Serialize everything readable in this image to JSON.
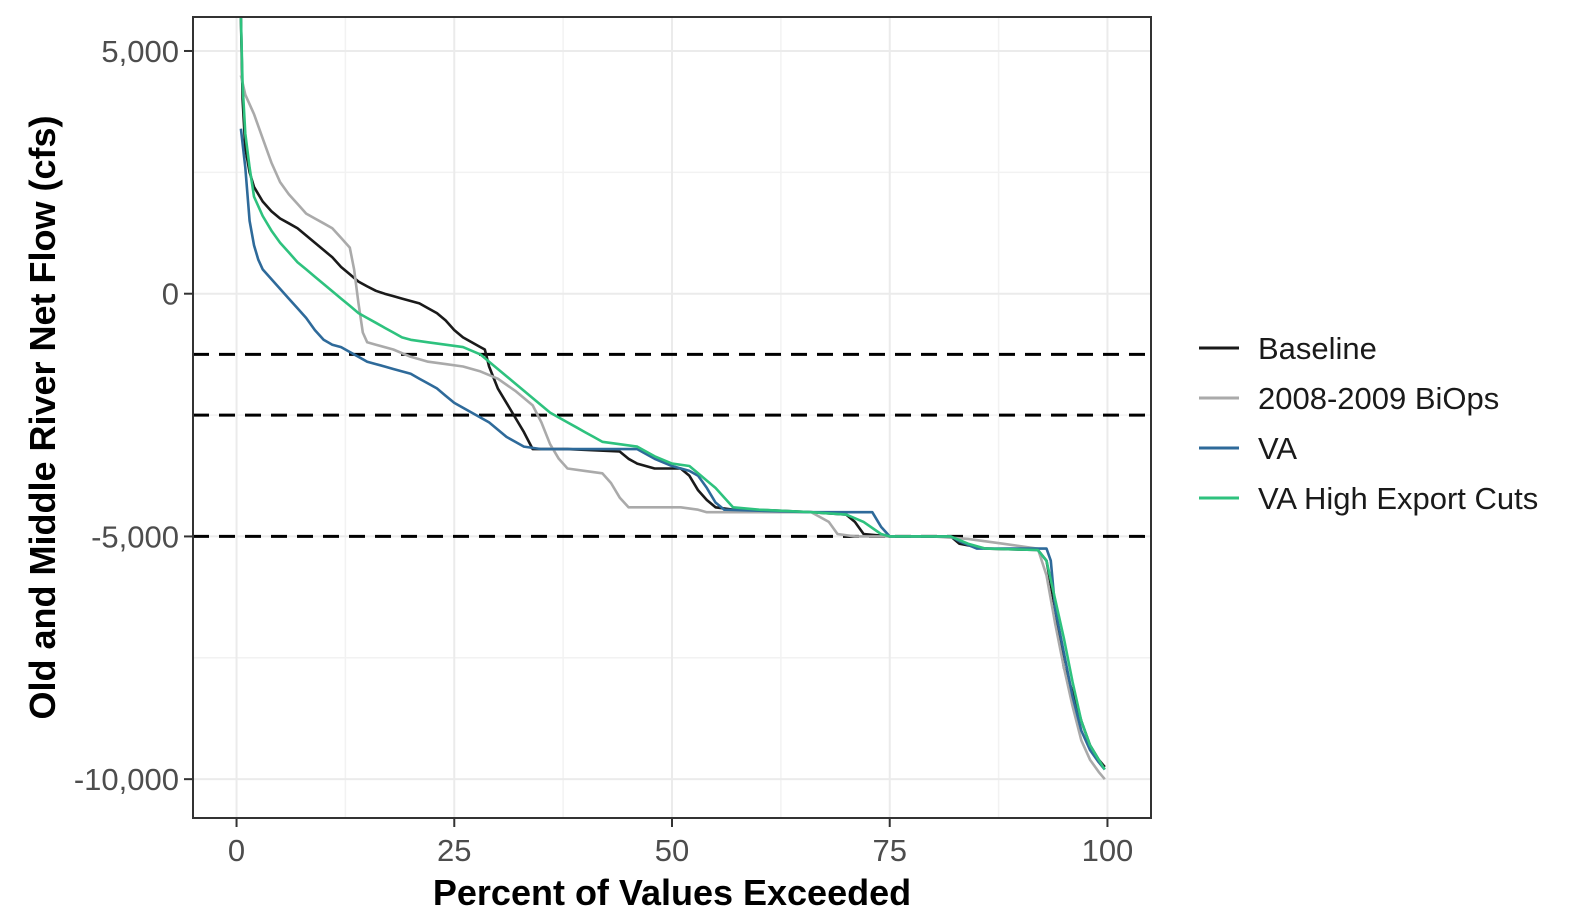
{
  "chart_data": {
    "type": "line",
    "title": "",
    "xlabel": "Percent of Values Exceeded",
    "ylabel": "Old and Middle River Net Flow (cfs)",
    "xlim": [
      -5,
      105
    ],
    "ylim": [
      -10800,
      5700
    ],
    "x_ticks": [
      0,
      25,
      50,
      75,
      100
    ],
    "x_tick_labels": [
      "0",
      "25",
      "50",
      "75",
      "100"
    ],
    "y_ticks": [
      5000,
      0,
      -5000,
      -10000
    ],
    "y_tick_labels": [
      "5,000",
      "0",
      "-5,000",
      "-10,000"
    ],
    "grid": true,
    "legend_position": "right",
    "reference_lines": [
      {
        "y": -1250,
        "style": "dashed",
        "color": "#000000"
      },
      {
        "y": -2500,
        "style": "dashed",
        "color": "#000000"
      },
      {
        "y": -5000,
        "style": "dashed",
        "color": "#000000"
      }
    ],
    "series": [
      {
        "name": "Baseline",
        "color": "#1a1a1a",
        "points": [
          [
            0.5,
            5700
          ],
          [
            0.7,
            4000
          ],
          [
            1,
            3000
          ],
          [
            1.5,
            2500
          ],
          [
            2,
            2200
          ],
          [
            3,
            1900
          ],
          [
            4,
            1700
          ],
          [
            5,
            1550
          ],
          [
            6,
            1450
          ],
          [
            7,
            1350
          ],
          [
            8,
            1200
          ],
          [
            9,
            1050
          ],
          [
            10,
            900
          ],
          [
            11,
            750
          ],
          [
            12,
            550
          ],
          [
            13,
            400
          ],
          [
            14,
            250
          ],
          [
            15,
            150
          ],
          [
            16,
            60
          ],
          [
            17,
            0
          ],
          [
            18,
            -50
          ],
          [
            19,
            -100
          ],
          [
            20,
            -150
          ],
          [
            21,
            -200
          ],
          [
            22,
            -300
          ],
          [
            23,
            -400
          ],
          [
            24,
            -550
          ],
          [
            25,
            -750
          ],
          [
            26,
            -900
          ],
          [
            27,
            -1000
          ],
          [
            28,
            -1100
          ],
          [
            28.5,
            -1150
          ],
          [
            29,
            -1500
          ],
          [
            30,
            -1950
          ],
          [
            31,
            -2250
          ],
          [
            32,
            -2550
          ],
          [
            33,
            -2850
          ],
          [
            34,
            -3200
          ],
          [
            38,
            -3200
          ],
          [
            44,
            -3250
          ],
          [
            45,
            -3400
          ],
          [
            46,
            -3500
          ],
          [
            48,
            -3600
          ],
          [
            51,
            -3600
          ],
          [
            52,
            -3750
          ],
          [
            53,
            -4050
          ],
          [
            54,
            -4250
          ],
          [
            55,
            -4400
          ],
          [
            57,
            -4450
          ],
          [
            61,
            -4460
          ],
          [
            66,
            -4500
          ],
          [
            70,
            -4550
          ],
          [
            71,
            -4700
          ],
          [
            72,
            -4950
          ],
          [
            75,
            -5000
          ],
          [
            82,
            -5000
          ],
          [
            83,
            -5150
          ],
          [
            86,
            -5250
          ],
          [
            92,
            -5280
          ],
          [
            93,
            -5500
          ],
          [
            94,
            -6500
          ],
          [
            95,
            -7700
          ],
          [
            96,
            -8200
          ],
          [
            97,
            -8800
          ],
          [
            98,
            -9300
          ],
          [
            99,
            -9600
          ],
          [
            99.7,
            -9750
          ]
        ]
      },
      {
        "name": "2008-2009 BiOps",
        "color": "#aaaaaa",
        "points": [
          [
            0.5,
            4500
          ],
          [
            1,
            4100
          ],
          [
            2,
            3700
          ],
          [
            3,
            3200
          ],
          [
            4,
            2700
          ],
          [
            5,
            2300
          ],
          [
            6,
            2050
          ],
          [
            7,
            1850
          ],
          [
            8,
            1650
          ],
          [
            9,
            1550
          ],
          [
            10,
            1450
          ],
          [
            11,
            1350
          ],
          [
            12,
            1150
          ],
          [
            13,
            950
          ],
          [
            13.5,
            500
          ],
          [
            14,
            -200
          ],
          [
            14.5,
            -800
          ],
          [
            15,
            -1000
          ],
          [
            16,
            -1050
          ],
          [
            18,
            -1150
          ],
          [
            20,
            -1300
          ],
          [
            22,
            -1400
          ],
          [
            24,
            -1450
          ],
          [
            26,
            -1500
          ],
          [
            28,
            -1600
          ],
          [
            30,
            -1750
          ],
          [
            32,
            -2000
          ],
          [
            34,
            -2300
          ],
          [
            35,
            -2650
          ],
          [
            36,
            -3100
          ],
          [
            37,
            -3400
          ],
          [
            38,
            -3600
          ],
          [
            40,
            -3650
          ],
          [
            42,
            -3700
          ],
          [
            43,
            -3900
          ],
          [
            44,
            -4200
          ],
          [
            45,
            -4400
          ],
          [
            51,
            -4400
          ],
          [
            53,
            -4450
          ],
          [
            54,
            -4500
          ],
          [
            66,
            -4500
          ],
          [
            68,
            -4700
          ],
          [
            69,
            -4950
          ],
          [
            71,
            -5000
          ],
          [
            80,
            -5000
          ],
          [
            84,
            -5050
          ],
          [
            88,
            -5150
          ],
          [
            92,
            -5250
          ],
          [
            93,
            -5800
          ],
          [
            94,
            -6800
          ],
          [
            95,
            -7700
          ],
          [
            96,
            -8500
          ],
          [
            97,
            -9200
          ],
          [
            98,
            -9600
          ],
          [
            99,
            -9850
          ],
          [
            99.7,
            -10000
          ]
        ]
      },
      {
        "name": "VA",
        "color": "#2e6a9a",
        "points": [
          [
            0.5,
            3400
          ],
          [
            1,
            2600
          ],
          [
            1.5,
            1500
          ],
          [
            2,
            1000
          ],
          [
            2.5,
            700
          ],
          [
            3,
            500
          ],
          [
            4,
            300
          ],
          [
            5,
            100
          ],
          [
            6,
            -100
          ],
          [
            7,
            -300
          ],
          [
            8,
            -500
          ],
          [
            9,
            -750
          ],
          [
            10,
            -950
          ],
          [
            11,
            -1050
          ],
          [
            12,
            -1100
          ],
          [
            13,
            -1200
          ],
          [
            14,
            -1300
          ],
          [
            15,
            -1400
          ],
          [
            16,
            -1450
          ],
          [
            17,
            -1500
          ],
          [
            18,
            -1550
          ],
          [
            19,
            -1600
          ],
          [
            20,
            -1650
          ],
          [
            21,
            -1750
          ],
          [
            22,
            -1850
          ],
          [
            23,
            -1950
          ],
          [
            24,
            -2100
          ],
          [
            25,
            -2250
          ],
          [
            26,
            -2350
          ],
          [
            27,
            -2450
          ],
          [
            28,
            -2550
          ],
          [
            29,
            -2650
          ],
          [
            30,
            -2800
          ],
          [
            31,
            -2950
          ],
          [
            32,
            -3050
          ],
          [
            33,
            -3150
          ],
          [
            35,
            -3200
          ],
          [
            46,
            -3200
          ],
          [
            48,
            -3400
          ],
          [
            50,
            -3550
          ],
          [
            52,
            -3650
          ],
          [
            53,
            -3750
          ],
          [
            54,
            -4000
          ],
          [
            55,
            -4300
          ],
          [
            56,
            -4450
          ],
          [
            60,
            -4470
          ],
          [
            66,
            -4500
          ],
          [
            73,
            -4500
          ],
          [
            74,
            -4800
          ],
          [
            75,
            -5000
          ],
          [
            82,
            -5000
          ],
          [
            83,
            -5100
          ],
          [
            85,
            -5250
          ],
          [
            93,
            -5250
          ],
          [
            93.5,
            -5500
          ],
          [
            94,
            -6500
          ],
          [
            95,
            -7400
          ],
          [
            96,
            -8300
          ],
          [
            97,
            -9000
          ],
          [
            98,
            -9400
          ],
          [
            99,
            -9650
          ],
          [
            99.7,
            -9800
          ]
        ]
      },
      {
        "name": "VA High Export Cuts",
        "color": "#2ec27e",
        "points": [
          [
            0.5,
            5700
          ],
          [
            0.7,
            4300
          ],
          [
            1,
            3300
          ],
          [
            1.5,
            2600
          ],
          [
            2,
            2000
          ],
          [
            3,
            1600
          ],
          [
            4,
            1300
          ],
          [
            5,
            1050
          ],
          [
            6,
            850
          ],
          [
            7,
            650
          ],
          [
            8,
            500
          ],
          [
            9,
            350
          ],
          [
            10,
            200
          ],
          [
            11,
            50
          ],
          [
            12,
            -100
          ],
          [
            13,
            -250
          ],
          [
            14,
            -400
          ],
          [
            15,
            -500
          ],
          [
            16,
            -600
          ],
          [
            17,
            -700
          ],
          [
            18,
            -800
          ],
          [
            19,
            -900
          ],
          [
            20,
            -950
          ],
          [
            22,
            -1000
          ],
          [
            24,
            -1050
          ],
          [
            26,
            -1100
          ],
          [
            28,
            -1250
          ],
          [
            29,
            -1400
          ],
          [
            30,
            -1550
          ],
          [
            31,
            -1700
          ],
          [
            32,
            -1850
          ],
          [
            33,
            -2000
          ],
          [
            34,
            -2150
          ],
          [
            35,
            -2300
          ],
          [
            36,
            -2450
          ],
          [
            37,
            -2550
          ],
          [
            38,
            -2650
          ],
          [
            39,
            -2750
          ],
          [
            40,
            -2850
          ],
          [
            41,
            -2950
          ],
          [
            42,
            -3050
          ],
          [
            44,
            -3100
          ],
          [
            46,
            -3150
          ],
          [
            48,
            -3350
          ],
          [
            50,
            -3500
          ],
          [
            52,
            -3550
          ],
          [
            53,
            -3700
          ],
          [
            54,
            -3850
          ],
          [
            55,
            -4000
          ],
          [
            56,
            -4200
          ],
          [
            57,
            -4400
          ],
          [
            60,
            -4450
          ],
          [
            66,
            -4500
          ],
          [
            70,
            -4550
          ],
          [
            72,
            -4700
          ],
          [
            74,
            -4950
          ],
          [
            75,
            -5000
          ],
          [
            82,
            -5000
          ],
          [
            84,
            -5150
          ],
          [
            86,
            -5250
          ],
          [
            92,
            -5280
          ],
          [
            93,
            -5500
          ],
          [
            94,
            -6300
          ],
          [
            95,
            -7100
          ],
          [
            96,
            -8000
          ],
          [
            97,
            -8800
          ],
          [
            98,
            -9300
          ],
          [
            99,
            -9600
          ],
          [
            99.7,
            -9800
          ]
        ]
      }
    ]
  }
}
